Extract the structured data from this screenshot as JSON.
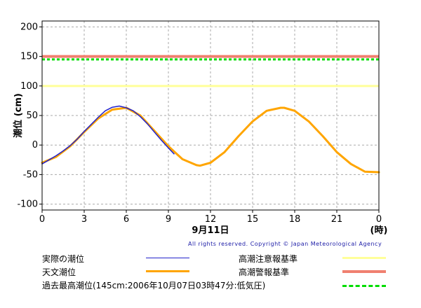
{
  "chart_data": {
    "type": "line",
    "xlabel": "9月11日",
    "xunit": "(時)",
    "ylabel": "潮位 (cm)",
    "xlim": [
      0,
      24
    ],
    "ylim": [
      -110,
      210
    ],
    "x_ticks": [
      "0",
      "3",
      "6",
      "9",
      "12",
      "15",
      "18",
      "21",
      "0"
    ],
    "y_ticks": [
      200,
      150,
      100,
      50,
      0,
      -50,
      -100
    ],
    "grid": true,
    "reference_lines": [
      {
        "name": "高潮注意報基準",
        "value": 100,
        "color": "#ffff99"
      },
      {
        "name": "高潮警報基準",
        "value": 150,
        "color": "#f08070"
      },
      {
        "name": "過去最高潮位(145cm:2006年10月07日03時47分:低気圧)",
        "value": 145,
        "color": "#00dd00",
        "dashed": true
      }
    ],
    "series": [
      {
        "name": "天文潮位",
        "color": "#ffa500",
        "x": [
          0,
          1,
          2,
          3,
          4,
          5,
          6,
          7,
          8,
          9,
          10,
          11,
          11.25,
          12,
          13,
          14,
          15,
          16,
          17,
          17.25,
          18,
          19,
          20,
          21,
          22,
          23,
          24
        ],
        "values": [
          -30,
          -20,
          -2,
          22,
          45,
          60,
          63,
          50,
          24,
          -2,
          -24,
          -34,
          -35,
          -30,
          -12,
          15,
          40,
          58,
          63,
          63,
          58,
          40,
          15,
          -12,
          -32,
          -45,
          -46
        ]
      },
      {
        "name": "実際の潮位",
        "color": "#2222cc",
        "x": [
          0,
          0.5,
          1,
          1.5,
          2,
          2.5,
          3,
          3.5,
          4,
          4.5,
          5,
          5.5,
          6,
          6.5,
          7,
          7.5,
          8,
          8.5,
          9,
          9.4
        ],
        "values": [
          -32,
          -25,
          -18,
          -10,
          -1,
          10,
          23,
          35,
          47,
          58,
          64,
          66,
          63,
          58,
          48,
          36,
          22,
          8,
          -5,
          -15
        ]
      }
    ]
  },
  "legend": {
    "actual_label": "実際の潮位",
    "astro_label": "天文潮位",
    "history_label": "過去最高潮位(145cm:2006年10月07日03時47分:低気圧)",
    "advisory_label": "高潮注意報基準",
    "warning_label": "高潮警報基準"
  },
  "copyright": "All rights reserved. Copyright © Japan Meteorological Agency"
}
